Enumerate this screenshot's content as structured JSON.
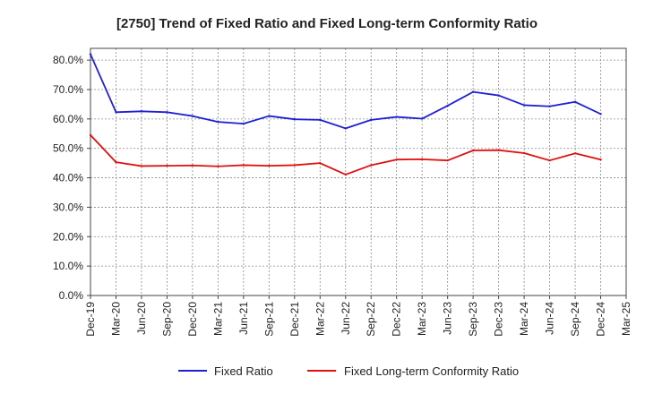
{
  "chart_data": {
    "type": "line",
    "title": "[2750]  Trend of Fixed Ratio and Fixed Long-term Conformity Ratio",
    "xlabel": "",
    "ylabel": "",
    "x_tick_labels": [
      "Dec-19",
      "Mar-20",
      "Jun-20",
      "Sep-20",
      "Dec-20",
      "Mar-21",
      "Jun-21",
      "Sep-21",
      "Dec-21",
      "Mar-22",
      "Jun-22",
      "Sep-22",
      "Dec-22",
      "Mar-23",
      "Jun-23",
      "Sep-23",
      "Dec-23",
      "Mar-24",
      "Jun-24",
      "Sep-24",
      "Dec-24",
      "Mar-25"
    ],
    "y_tick_labels": [
      "0.0%",
      "10.0%",
      "20.0%",
      "30.0%",
      "40.0%",
      "50.0%",
      "60.0%",
      "70.0%",
      "80.0%"
    ],
    "ylim": [
      0,
      84
    ],
    "grid": true,
    "legend_position": "bottom",
    "series": [
      {
        "name": "Fixed Ratio",
        "color": "#1f1fd6",
        "x": [
          "Dec-19",
          "Mar-20",
          "Jun-20",
          "Sep-20",
          "Dec-20",
          "Mar-21",
          "Jun-21",
          "Sep-21",
          "Dec-21",
          "Mar-22",
          "Jun-22",
          "Sep-22",
          "Dec-22",
          "Mar-23",
          "Jun-23",
          "Sep-23",
          "Dec-23",
          "Mar-24",
          "Jun-24",
          "Sep-24",
          "Dec-24"
        ],
        "values": [
          82.0,
          62.3,
          62.6,
          62.3,
          61.0,
          59.0,
          58.4,
          61.0,
          59.9,
          59.7,
          56.8,
          59.7,
          60.7,
          60.1,
          64.5,
          69.2,
          68.0,
          64.7,
          64.3,
          65.8,
          61.7
        ]
      },
      {
        "name": "Fixed Long-term Conformity Ratio",
        "color": "#e01010",
        "x": [
          "Dec-19",
          "Mar-20",
          "Jun-20",
          "Sep-20",
          "Dec-20",
          "Mar-21",
          "Jun-21",
          "Sep-21",
          "Dec-21",
          "Mar-22",
          "Jun-22",
          "Sep-22",
          "Dec-22",
          "Mar-23",
          "Jun-23",
          "Sep-23",
          "Dec-23",
          "Mar-24",
          "Jun-24",
          "Sep-24",
          "Dec-24"
        ],
        "values": [
          54.5,
          45.3,
          44.0,
          44.1,
          44.2,
          43.9,
          44.3,
          44.1,
          44.3,
          45.0,
          41.1,
          44.3,
          46.2,
          46.3,
          45.9,
          49.3,
          49.4,
          48.4,
          45.9,
          48.3,
          46.2
        ]
      }
    ]
  }
}
